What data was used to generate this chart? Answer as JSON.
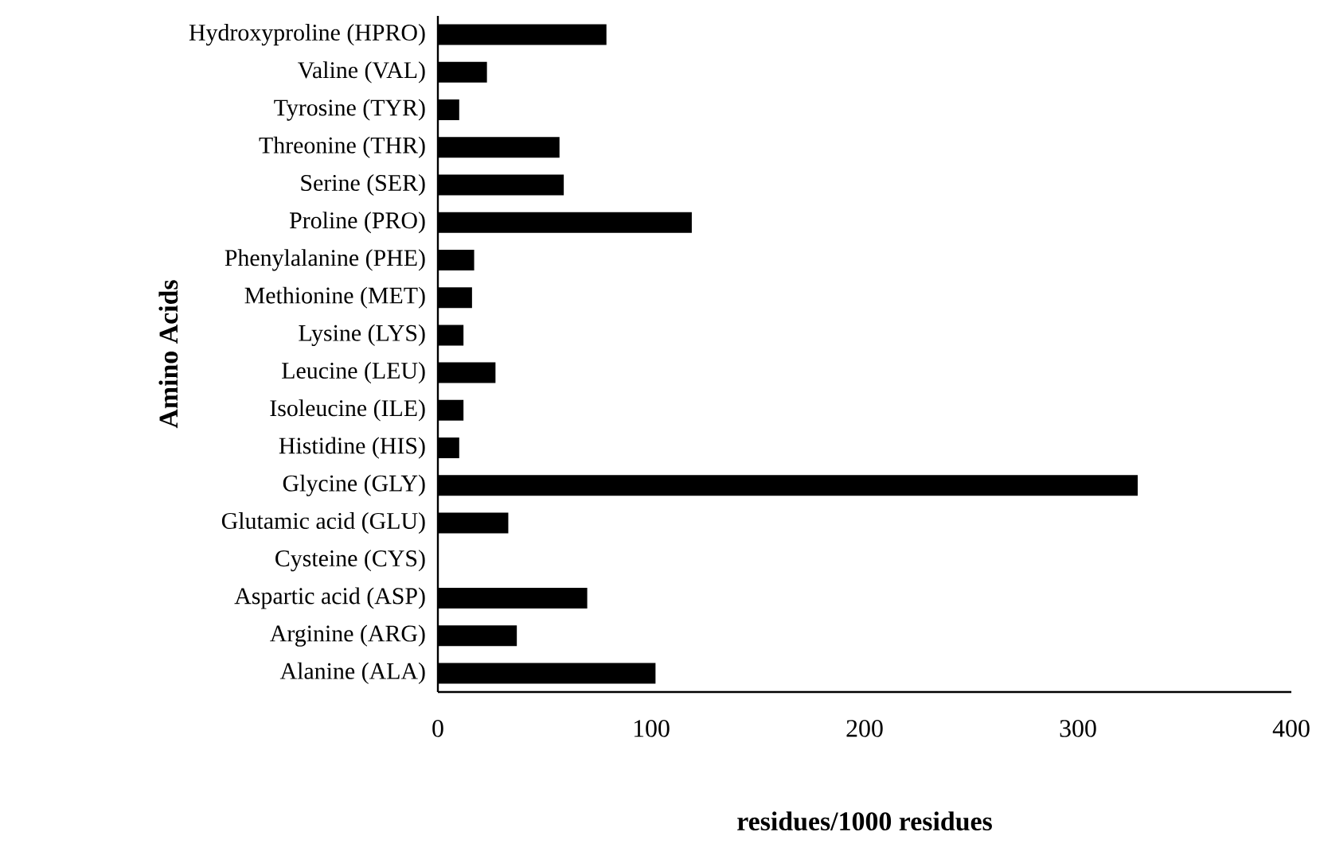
{
  "chart_data": {
    "type": "bar",
    "orientation": "horizontal",
    "categories": [
      "Hydroxyproline (HPRO)",
      "Valine (VAL)",
      "Tyrosine (TYR)",
      "Threonine (THR)",
      "Serine (SER)",
      "Proline (PRO)",
      "Phenylalanine (PHE)",
      "Methionine (MET)",
      "Lysine (LYS)",
      "Leucine (LEU)",
      "Isoleucine (ILE)",
      "Histidine (HIS)",
      "Glycine (GLY)",
      "Glutamic acid (GLU)",
      "Cysteine (CYS)",
      "Aspartic acid (ASP)",
      "Arginine (ARG)",
      "Alanine (ALA)"
    ],
    "values": [
      79,
      23,
      10,
      57,
      59,
      119,
      17,
      16,
      12,
      27,
      12,
      10,
      328,
      33,
      0,
      70,
      37,
      102
    ],
    "color": "#000000",
    "xlim": [
      0,
      400
    ],
    "xticks": [
      0,
      100,
      200,
      300,
      400
    ],
    "xlabel": "residues/1000 residues",
    "ylabel": "Amino Acids"
  }
}
